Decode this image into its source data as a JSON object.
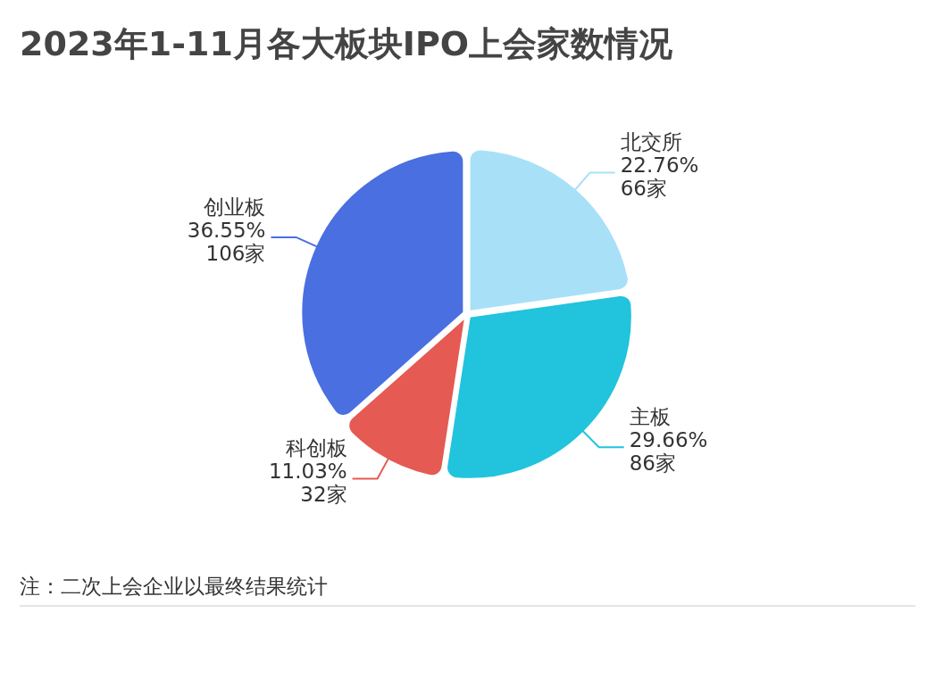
{
  "chart_data": {
    "type": "pie",
    "title": "2023年1-11月各大板块IPO上会家数情况",
    "categories": [
      "北交所",
      "主板",
      "科创板",
      "创业板"
    ],
    "values": [
      66,
      86,
      32,
      106
    ],
    "value_labels": [
      "22.76%\n66家",
      "29.66%\n86家",
      "11.03%\n32家",
      "36.55%\n106家"
    ],
    "colors": [
      "#a8e0f8",
      "#22c3dc",
      "#e55a52",
      "#4a6fe0"
    ],
    "annotations": [
      "注：二次上会企业以最终结果统计"
    ]
  }
}
